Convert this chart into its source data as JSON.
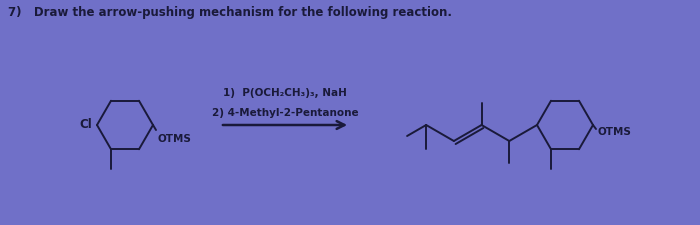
{
  "bg_color": "#7070c8",
  "line_color": "#1a1a3a",
  "text_color": "#1a1a3a",
  "title": "7)   Draw the arrow-pushing mechanism for the following reaction.",
  "title_fontsize": 8.5,
  "reagent_line1": "1)  P(OCH₂CH₃)₃, NaH",
  "reagent_line2": "2) 4-Methyl-2-Pentanone",
  "label_cl": "Cl",
  "label_otms_left": "OTMS",
  "label_otms_right": "OTMS",
  "lw": 1.4,
  "side": 0.28
}
